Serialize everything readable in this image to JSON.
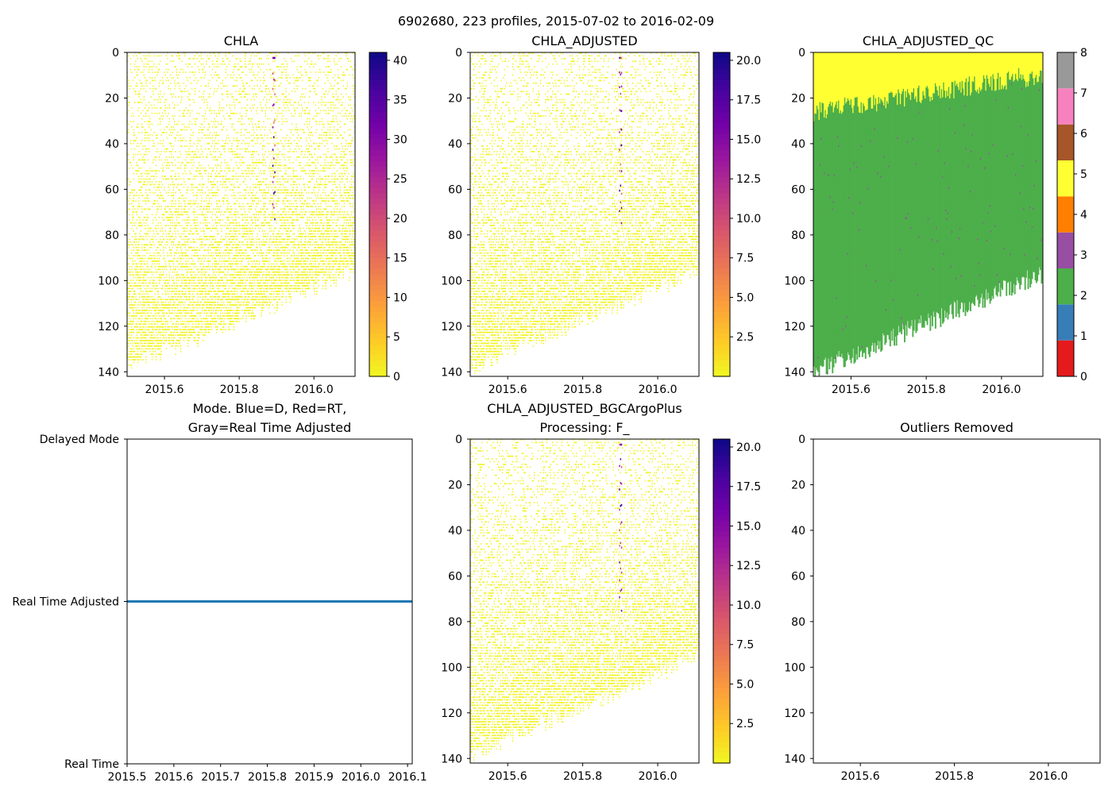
{
  "suptitle": "6902680, 223 profiles, 2015-07-02 to 2016-02-09",
  "colors": {
    "plasma_r_stops": [
      "#f0f921",
      "#fdca26",
      "#fb9f3a",
      "#ed7953",
      "#d8576b",
      "#bd3786",
      "#9c179e",
      "#7201a8",
      "#46039f",
      "#0d0887"
    ],
    "qc_colors": [
      "#e41a1c",
      "#377eb8",
      "#4daf4a",
      "#984ea3",
      "#ff7f00",
      "#ffff33",
      "#a65628",
      "#f781bf",
      "#999999"
    ],
    "qc_good": "#4daf4a",
    "qc_surface": "#ffff33",
    "qc_outlier": "#984ea3",
    "mode_line": "#1f77b4"
  },
  "chart_data": [
    {
      "type": "heatmap",
      "title": "CHLA",
      "xlim": [
        2015.5,
        2016.11
      ],
      "ylim": [
        142,
        0
      ],
      "xticks": [
        2015.6,
        2015.8,
        2016.0
      ],
      "xtick_labels": [
        "2015.6",
        "2015.8",
        "2016.0"
      ],
      "yticks": [
        0,
        20,
        40,
        60,
        80,
        100,
        120,
        140
      ],
      "ytick_labels": [
        "0",
        "20",
        "40",
        "60",
        "80",
        "100",
        "120",
        "140"
      ],
      "colorbar": {
        "cmap": "plasma_r",
        "range": [
          0,
          41
        ],
        "ticks": [
          0,
          5,
          10,
          15,
          20,
          25,
          30,
          35,
          40
        ],
        "tick_labels": [
          "0",
          "5",
          "10",
          "15",
          "20",
          "25",
          "30",
          "35",
          "40"
        ]
      },
      "profile_depth_start": 138,
      "profile_depth_end": 95,
      "typical_value": 0.5,
      "highlight_profile_time": 2015.89
    },
    {
      "type": "heatmap",
      "title": "CHLA_ADJUSTED",
      "xlim": [
        2015.5,
        2016.11
      ],
      "ylim": [
        142,
        0
      ],
      "xticks": [
        2015.6,
        2015.8,
        2016.0
      ],
      "xtick_labels": [
        "2015.6",
        "2015.8",
        "2016.0"
      ],
      "yticks": [
        0,
        20,
        40,
        60,
        80,
        100,
        120,
        140
      ],
      "ytick_labels": [
        "0",
        "20",
        "40",
        "60",
        "80",
        "100",
        "120",
        "140"
      ],
      "colorbar": {
        "cmap": "plasma_r",
        "range": [
          0,
          20.5
        ],
        "ticks": [
          2.5,
          5.0,
          7.5,
          10.0,
          12.5,
          15.0,
          17.5,
          20.0
        ],
        "tick_labels": [
          "2.5",
          "5.0",
          "7.5",
          "10.0",
          "12.5",
          "15.0",
          "17.5",
          "20.0"
        ]
      },
      "profile_depth_start": 138,
      "profile_depth_end": 95,
      "typical_value": 0.25,
      "highlight_profile_time": 2015.9
    },
    {
      "type": "heatmap",
      "title": "CHLA_ADJUSTED_QC",
      "xlim": [
        2015.5,
        2016.11
      ],
      "ylim": [
        142,
        0
      ],
      "xticks": [
        2015.6,
        2015.8,
        2016.0
      ],
      "xtick_labels": [
        "2015.6",
        "2015.8",
        "2016.0"
      ],
      "yticks": [
        0,
        20,
        40,
        60,
        80,
        100,
        120,
        140
      ],
      "ytick_labels": [
        "0",
        "20",
        "40",
        "60",
        "80",
        "100",
        "120",
        "140"
      ],
      "colorbar": {
        "cmap": "qc_categorical",
        "range": [
          0,
          8
        ],
        "ticks": [
          0,
          1,
          2,
          3,
          4,
          5,
          6,
          7,
          8
        ],
        "tick_labels": [
          "0",
          "1",
          "2",
          "3",
          "4",
          "5",
          "6",
          "7",
          "8"
        ]
      },
      "profile_depth_start": 138,
      "profile_depth_end": 95,
      "surface_flag_5_depth_start": 22,
      "surface_flag_5_depth_end": 5,
      "flag_values": [
        2,
        3,
        5
      ]
    },
    {
      "type": "line",
      "title": "Mode. Blue=D, Red=RT,",
      "title_line2": "Gray=Real Time Adjusted",
      "xlim": [
        2015.5,
        2016.11
      ],
      "xticks": [
        2015.5,
        2015.6,
        2015.7,
        2015.8,
        2015.9,
        2016.0,
        2016.1
      ],
      "xtick_labels": [
        "2015.5",
        "2015.6",
        "2015.7",
        "2015.8",
        "2015.9",
        "2016.0",
        "2016.1"
      ],
      "yticks": [
        0,
        1,
        2
      ],
      "ytick_labels": [
        "Real Time",
        "Real Time Adjusted",
        "Delayed Mode"
      ],
      "ylim": [
        0,
        2
      ],
      "series": [
        {
          "name": "mode",
          "x": [
            2015.5,
            2016.11
          ],
          "y": [
            1,
            1
          ]
        }
      ]
    },
    {
      "type": "heatmap",
      "title": "CHLA_ADJUSTED_BGCArgoPlus",
      "title_line2": "Processing: F_",
      "xlim": [
        2015.5,
        2016.11
      ],
      "ylim": [
        142,
        0
      ],
      "xticks": [
        2015.6,
        2015.8,
        2016.0
      ],
      "xtick_labels": [
        "2015.6",
        "2015.8",
        "2016.0"
      ],
      "yticks": [
        0,
        20,
        40,
        60,
        80,
        100,
        120,
        140
      ],
      "ytick_labels": [
        "0",
        "20",
        "40",
        "60",
        "80",
        "100",
        "120",
        "140"
      ],
      "colorbar": {
        "cmap": "plasma_r",
        "range": [
          0,
          20.5
        ],
        "ticks": [
          2.5,
          5.0,
          7.5,
          10.0,
          12.5,
          15.0,
          17.5,
          20.0
        ],
        "tick_labels": [
          "2.5",
          "5.0",
          "7.5",
          "10.0",
          "12.5",
          "15.0",
          "17.5",
          "20.0"
        ]
      },
      "profile_depth_start": 138,
      "profile_depth_end": 95,
      "typical_value": 0.25,
      "highlight_profile_time": 2015.9
    },
    {
      "type": "scatter",
      "title": "Outliers Removed",
      "xlim": [
        2015.5,
        2016.11
      ],
      "ylim": [
        142,
        0
      ],
      "xticks": [
        2015.6,
        2015.8,
        2016.0
      ],
      "xtick_labels": [
        "2015.6",
        "2015.8",
        "2016.0"
      ],
      "yticks": [
        0,
        20,
        40,
        60,
        80,
        100,
        120,
        140
      ],
      "ytick_labels": [
        "0",
        "20",
        "40",
        "60",
        "80",
        "100",
        "120",
        "140"
      ],
      "points": []
    }
  ]
}
